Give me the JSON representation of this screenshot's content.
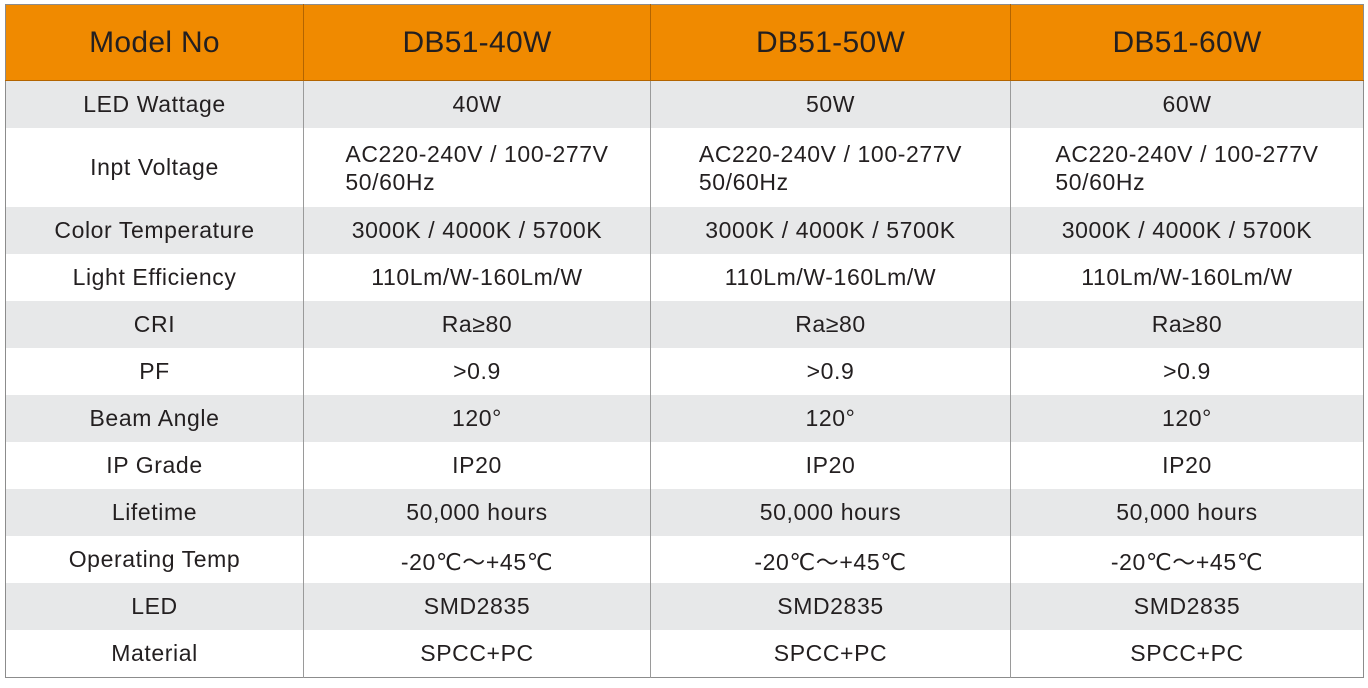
{
  "table": {
    "header": {
      "label": "Model No",
      "models": [
        "DB51-40W",
        "DB51-50W",
        "DB51-60W"
      ]
    },
    "rows": [
      {
        "label": "LED Wattage",
        "values": [
          "40W",
          "50W",
          "60W"
        ]
      },
      {
        "label": "Inpt Voltage",
        "line1": "AC220-240V / 100-277V",
        "line2": "50/60Hz"
      },
      {
        "label": "Color Temperature",
        "values": [
          "3000K / 4000K / 5700K",
          "3000K / 4000K / 5700K",
          "3000K / 4000K / 5700K"
        ]
      },
      {
        "label": "Light Efficiency",
        "values": [
          "110Lm/W-160Lm/W",
          "110Lm/W-160Lm/W",
          "110Lm/W-160Lm/W"
        ]
      },
      {
        "label": "CRI",
        "values": [
          "Ra≥80",
          "Ra≥80",
          "Ra≥80"
        ]
      },
      {
        "label": "PF",
        "values": [
          ">0.9",
          ">0.9",
          ">0.9"
        ]
      },
      {
        "label": "Beam Angle",
        "values": [
          "120°",
          "120°",
          "120°"
        ]
      },
      {
        "label": "IP Grade",
        "values": [
          "IP20",
          "IP20",
          "IP20"
        ]
      },
      {
        "label": "Lifetime",
        "values": [
          "50,000 hours",
          "50,000 hours",
          "50,000 hours"
        ]
      },
      {
        "label": "Operating Temp",
        "values": [
          "-20℃～+45℃",
          "-20℃～+45℃",
          "-20℃～+45℃"
        ]
      },
      {
        "label": "LED",
        "values": [
          "SMD2835",
          "SMD2835",
          "SMD2835"
        ]
      },
      {
        "label": "Material",
        "values": [
          "SPCC+PC",
          "SPCC+PC",
          "SPCC+PC"
        ]
      }
    ]
  },
  "colors": {
    "header_bg": "#f08a00",
    "row_shaded_bg": "#e7e8e9",
    "row_plain_bg": "#ffffff",
    "text": "#231f20"
  }
}
